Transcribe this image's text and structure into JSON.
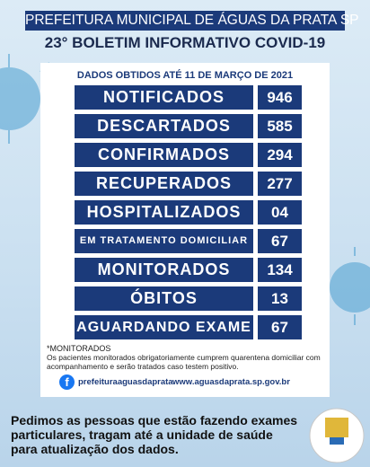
{
  "header": {
    "title": "PREFEITURA MUNICIPAL DE ÁGUAS DA PRATA SP",
    "subtitle": "23° BOLETIM INFORMATIVO COVID-19"
  },
  "card": {
    "date_heading": "DADOS OBTIDOS ATÉ 11 DE MARÇO DE 2021",
    "rows": [
      {
        "label": "NOTIFICADOS",
        "value": "946"
      },
      {
        "label": "DESCARTADOS",
        "value": "585"
      },
      {
        "label": "CONFIRMADOS",
        "value": "294"
      },
      {
        "label": "RECUPERADOS",
        "value": "277"
      },
      {
        "label": "HOSPITALIZADOS",
        "value": "04"
      },
      {
        "label": "EM TRATAMENTO DOMICILIAR",
        "value": "67"
      },
      {
        "label": "MONITORADOS",
        "value": "134"
      },
      {
        "label": "ÓBITOS",
        "value": "13"
      },
      {
        "label": "AGUARDANDO EXAME",
        "value": "67"
      }
    ],
    "note_title": "*MONITORADOS",
    "note_text": "Os pacientes monitorados obrigatoriamente cumprem quarentena domiciliar com acompanhamento e serão tratados caso testem positivo.",
    "facebook": "prefeituraaguasdaprata",
    "website": "www.aguasdaprata.sp.gov.br"
  },
  "footer": {
    "message": "Pedimos as pessoas que estão fazendo exames particulares, tragam até a unidade de saúde para atualização dos dados."
  }
}
